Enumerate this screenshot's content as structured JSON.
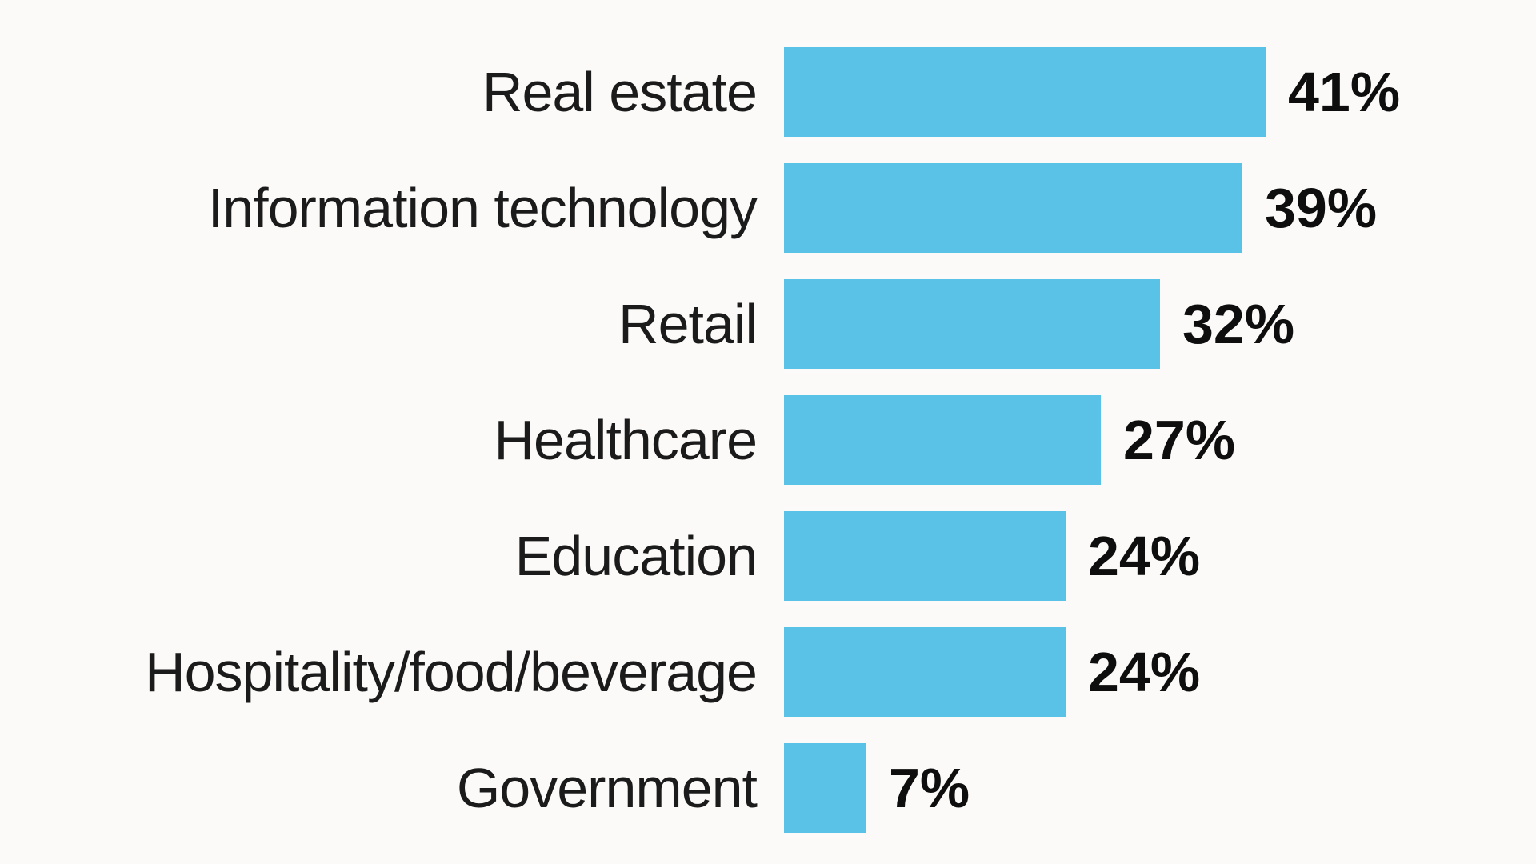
{
  "chart_data": {
    "type": "bar",
    "orientation": "horizontal",
    "title": "",
    "xlabel": "",
    "ylabel": "",
    "categories": [
      "Real estate",
      "Information technology",
      "Retail",
      "Healthcare",
      "Education",
      "Hospitality/food/beverage",
      "Government"
    ],
    "values": [
      41,
      39,
      32,
      27,
      24,
      24,
      7
    ],
    "value_labels": [
      "41%",
      "39%",
      "32%",
      "27%",
      "24%",
      "24%",
      "7%"
    ],
    "xlim": [
      0,
      41
    ],
    "grid": false,
    "axes_shown": false,
    "legend": "none",
    "bar_color": "#5BC2E7",
    "background_color": "#FBFAF8",
    "label_text_color": "#1B1B1B",
    "value_text_color": "#0E0E0E"
  }
}
